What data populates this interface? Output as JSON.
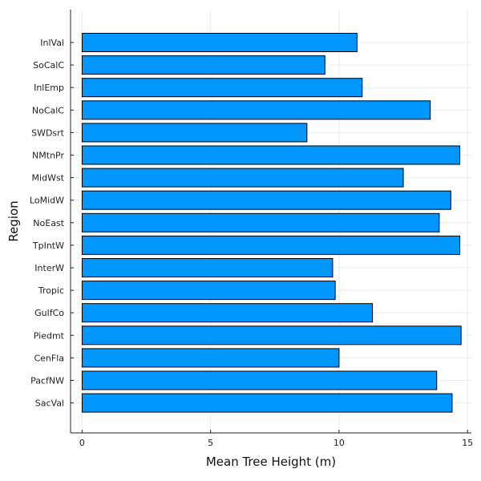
{
  "chart_data": {
    "type": "bar",
    "orientation": "horizontal",
    "xlabel": "Mean Tree Height (m)",
    "ylabel": "Region",
    "xlim": [
      -0.45,
      15.15
    ],
    "x_ticks": [
      0,
      5,
      10,
      15
    ],
    "grid": true,
    "legend": "none",
    "bar_color": "#0096ff",
    "categories": [
      "InlVal",
      "SoCalC",
      "InlEmp",
      "NoCalC",
      "SWDsrt",
      "NMtnPr",
      "MidWst",
      "LoMidW",
      "NoEast",
      "TpIntW",
      "InterW",
      "Tropic",
      "GulfCo",
      "Piedmt",
      "CenFla",
      "PacfNW",
      "SacVal"
    ],
    "values": [
      10.7,
      9.45,
      10.9,
      13.55,
      8.75,
      14.7,
      12.5,
      14.35,
      13.9,
      14.7,
      9.75,
      9.85,
      11.3,
      14.75,
      10.0,
      13.8,
      14.4
    ]
  }
}
